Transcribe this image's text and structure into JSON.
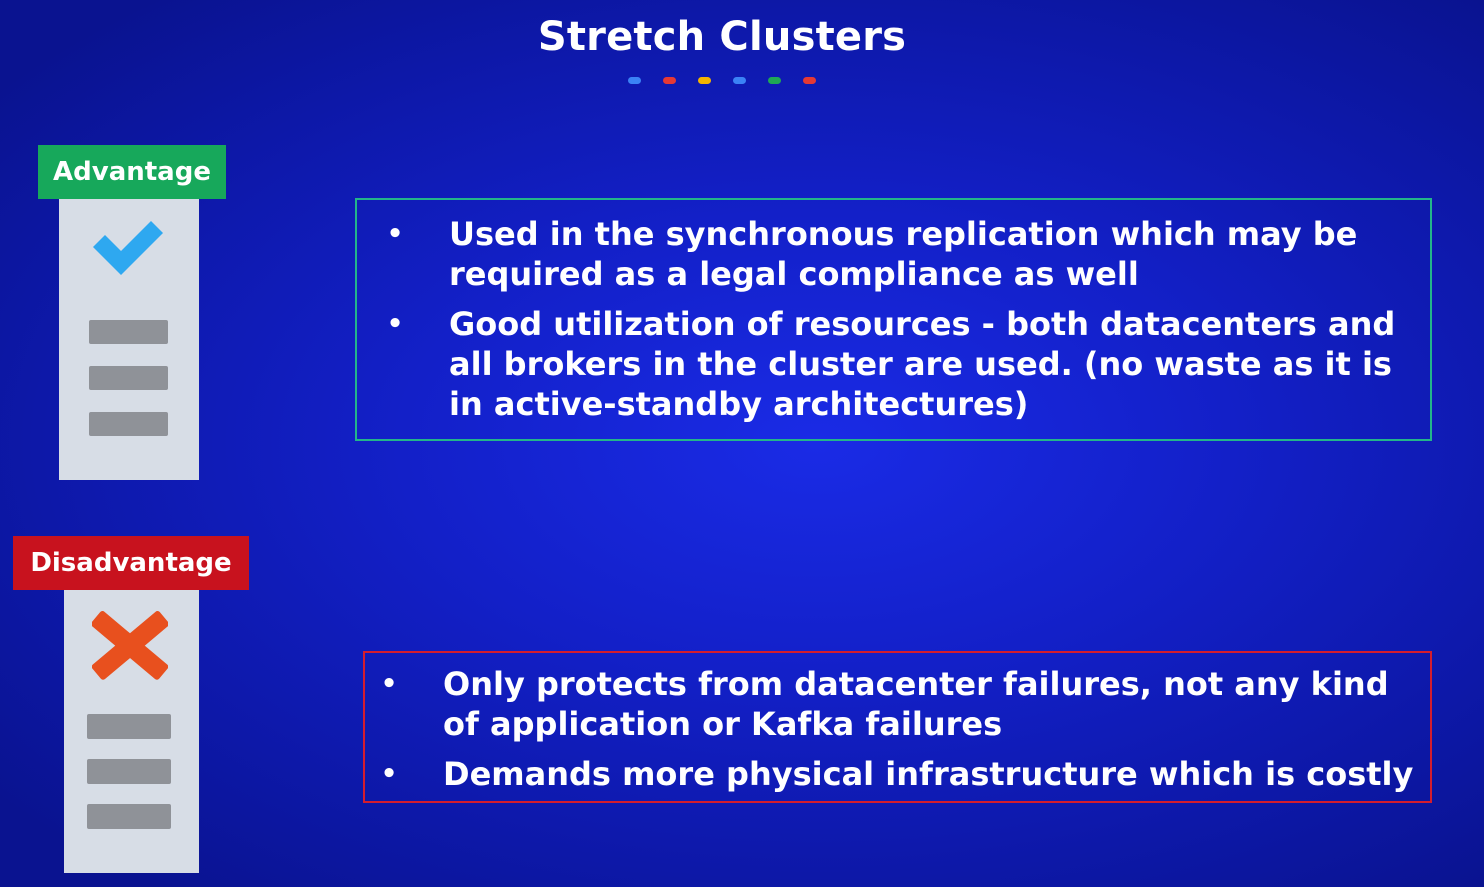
{
  "slide": {
    "title": "Stretch Clusters",
    "dot_colors": [
      "#3b82f6",
      "#e53935",
      "#f5b400",
      "#3b82f6",
      "#1fa855",
      "#e53935"
    ]
  },
  "advantage": {
    "label": "Advantage",
    "icon": "check-icon",
    "points": [
      "Used in the synchronous replication which may be required as a legal compliance as well",
      "Good utilization of resources - both datacenters and all brokers in the cluster are used. (no waste as it is in active-standby architectures)"
    ]
  },
  "disadvantage": {
    "label": "Disadvantage",
    "icon": "cross-icon",
    "points": [
      "Only protects from datacenter failures, not any kind of application or Kafka failures",
      "Demands more physical infrastructure which is costly"
    ]
  },
  "colors": {
    "advantage_green": "#17a85b",
    "disadvantage_red": "#c8121e",
    "check_blue": "#2ea8f0",
    "cross_orange": "#e8501e"
  }
}
